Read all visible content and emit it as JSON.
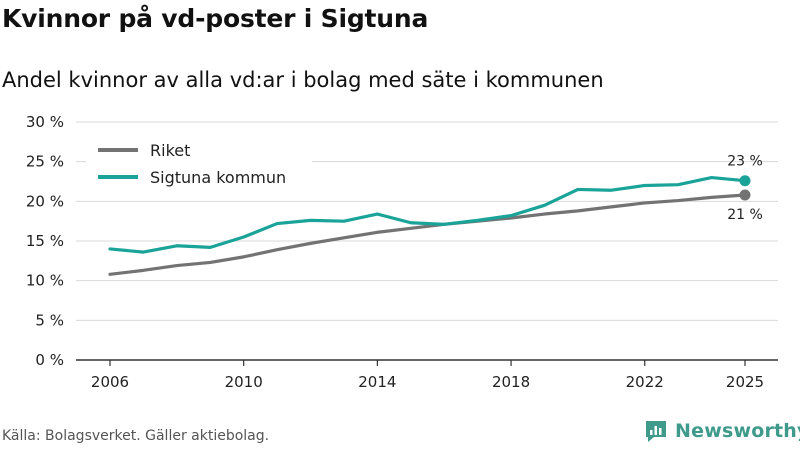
{
  "header": {
    "title": "Kvinnor på vd-poster i Sigtuna",
    "subtitle": "Andel kvinnor av alla vd:ar i bolag med säte i kommunen"
  },
  "footer": {
    "source": "Källa: Bolagsverket. Gäller aktiebolag.",
    "brand": "Newsworthy"
  },
  "colors": {
    "riket": "#737373",
    "sigtuna": "#1aa399",
    "grid": "#d9d9d9"
  },
  "chart_data": {
    "type": "line",
    "x": [
      2006,
      2007,
      2008,
      2009,
      2010,
      2011,
      2012,
      2013,
      2014,
      2015,
      2016,
      2017,
      2018,
      2019,
      2020,
      2021,
      2022,
      2023,
      2024,
      2025
    ],
    "series": [
      {
        "name": "Riket",
        "values": [
          10.8,
          11.3,
          11.9,
          12.3,
          13.0,
          13.9,
          14.7,
          15.4,
          16.1,
          16.6,
          17.1,
          17.5,
          17.9,
          18.4,
          18.8,
          19.3,
          19.8,
          20.1,
          20.5,
          20.8
        ],
        "end_label": "21 %"
      },
      {
        "name": "Sigtuna kommun",
        "values": [
          14.0,
          13.6,
          14.4,
          14.2,
          15.5,
          17.2,
          17.6,
          17.5,
          18.4,
          17.3,
          17.1,
          17.6,
          18.2,
          19.5,
          21.5,
          21.4,
          22.0,
          22.1,
          23.0,
          22.6
        ],
        "end_label": "23 %"
      }
    ],
    "x_ticks": [
      2006,
      2010,
      2014,
      2018,
      2022,
      2025
    ],
    "y_ticks": [
      0,
      5,
      10,
      15,
      20,
      25,
      30
    ],
    "y_tick_labels": [
      "0 %",
      "5 %",
      "10 %",
      "15 %",
      "20 %",
      "25 %",
      "30 %"
    ],
    "ylim": [
      0,
      30
    ],
    "xlim": [
      2006,
      2025
    ],
    "grid": true,
    "legend_position": "top-left"
  }
}
